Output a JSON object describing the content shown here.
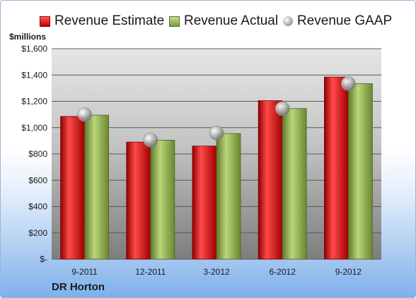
{
  "legend": {
    "estimate": "Revenue Estimate",
    "actual": "Revenue Actual",
    "gaap": "Revenue GAAP"
  },
  "units_label": "$millions",
  "company": "DR Horton",
  "colors": {
    "estimate": "#d01818",
    "actual": "#8fb050",
    "gaap": "#b0b0b0"
  },
  "chart_data": {
    "type": "bar",
    "categories": [
      "9-2011",
      "12-2011",
      "3-2012",
      "6-2012",
      "9-2012"
    ],
    "series": [
      {
        "name": "Revenue Estimate",
        "values": [
          1085,
          890,
          860,
          1205,
          1385
        ]
      },
      {
        "name": "Revenue Actual",
        "values": [
          1095,
          905,
          955,
          1145,
          1335
        ]
      },
      {
        "name": "Revenue GAAP",
        "values": [
          1100,
          905,
          960,
          1145,
          1335
        ]
      }
    ],
    "ylabel": "$millions",
    "ylim": [
      0,
      1600
    ],
    "yticks": [
      0,
      200,
      400,
      600,
      800,
      1000,
      1200,
      1400,
      1600
    ],
    "ytick_labels": [
      "$-",
      "$200",
      "$400",
      "$600",
      "$800",
      "$1,000",
      "$1,200",
      "$1,400",
      "$1,600"
    ],
    "legend_position": "top",
    "grid": true
  }
}
